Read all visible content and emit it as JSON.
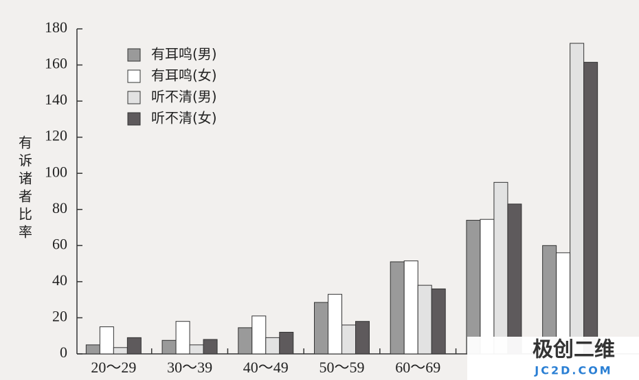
{
  "chart_data": {
    "type": "bar",
    "y_label": "有诉诸者比率",
    "categories": [
      "20～29",
      "30～39",
      "40～49",
      "50～59",
      "60～69",
      null,
      null
    ],
    "series": [
      {
        "name": "有耳鸣(男)",
        "color": "#9a9a9a",
        "values": [
          5,
          7.5,
          14.5,
          28.5,
          51,
          74,
          60
        ]
      },
      {
        "name": "有耳鸣(女)",
        "color": "#ffffff",
        "values": [
          15,
          18,
          21,
          33,
          51.5,
          74.5,
          56
        ]
      },
      {
        "name": "听不清(男)",
        "color": "#e2e2e2",
        "values": [
          3.5,
          5,
          9,
          16,
          38,
          95,
          172
        ]
      },
      {
        "name": "听不清(女)",
        "color": "#5e5a5c",
        "values": [
          9,
          8,
          12,
          18,
          36,
          83,
          161.5
        ]
      }
    ],
    "ylim": [
      0,
      180
    ],
    "yticks": [
      0,
      20,
      40,
      60,
      80,
      100,
      120,
      140,
      160,
      180
    ],
    "legend": "upper left",
    "watermark": [
      "极创二维",
      "JC2D.COM"
    ]
  }
}
